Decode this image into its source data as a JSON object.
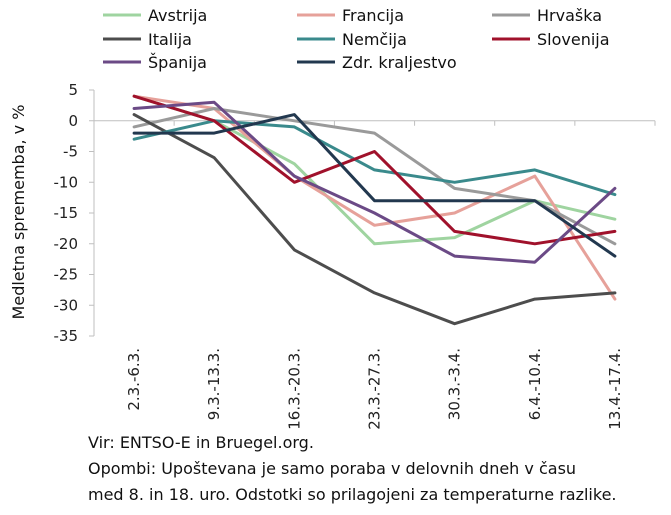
{
  "chart_data": {
    "type": "line",
    "title": "",
    "xlabel": "",
    "ylabel": "Medletna sprememba, v %",
    "ylim": [
      -35,
      5
    ],
    "yticks": [
      5,
      0,
      -5,
      -10,
      -15,
      -20,
      -25,
      -30,
      -35
    ],
    "grid": false,
    "legend_position": "top",
    "categories": [
      "2.3.-6.3.",
      "9.3.-13.3.",
      "16.3.-20.3.",
      "23.3.-27.3.",
      "30.3.-3.4.",
      "6.4.-10.4.",
      "13.4.-17.4."
    ],
    "series": [
      {
        "name": "Avstrija",
        "color": "#9fd4a0",
        "values": [
          4,
          0,
          -7,
          -20,
          -19,
          -13,
          -16
        ]
      },
      {
        "name": "Francija",
        "color": "#e6a19a",
        "values": [
          4,
          2,
          -9,
          -17,
          -15,
          -9,
          -29
        ]
      },
      {
        "name": "Hrvaška",
        "color": "#9a9a9a",
        "values": [
          -1,
          2,
          0,
          -2,
          -11,
          -13,
          -20
        ]
      },
      {
        "name": "Italija",
        "color": "#4d4d4d",
        "values": [
          1,
          -6,
          -21,
          -28,
          -33,
          -29,
          -28
        ]
      },
      {
        "name": "Nemčija",
        "color": "#3a8a8c",
        "values": [
          -3,
          0,
          -1,
          -8,
          -10,
          -8,
          -12
        ]
      },
      {
        "name": "Slovenija",
        "color": "#a0112b",
        "values": [
          4,
          0,
          -10,
          -5,
          -18,
          -20,
          -18
        ]
      },
      {
        "name": "Španija",
        "color": "#6b4a86",
        "values": [
          2,
          3,
          -9,
          -15,
          -22,
          -23,
          -11
        ]
      },
      {
        "name": "Zdr. kraljestvo",
        "color": "#22384f",
        "values": [
          -2,
          -2,
          1,
          -13,
          -13,
          -13,
          -22
        ]
      }
    ]
  },
  "notes": {
    "source": "Vir: ENTSO-E in Bruegel.org.",
    "note_line1": "Opombi: Upoštevana je samo poraba v delovnih dneh v času",
    "note_line2": "med 8. in 18. uro. Odstotki so prilagojeni za temperaturne razlike."
  }
}
